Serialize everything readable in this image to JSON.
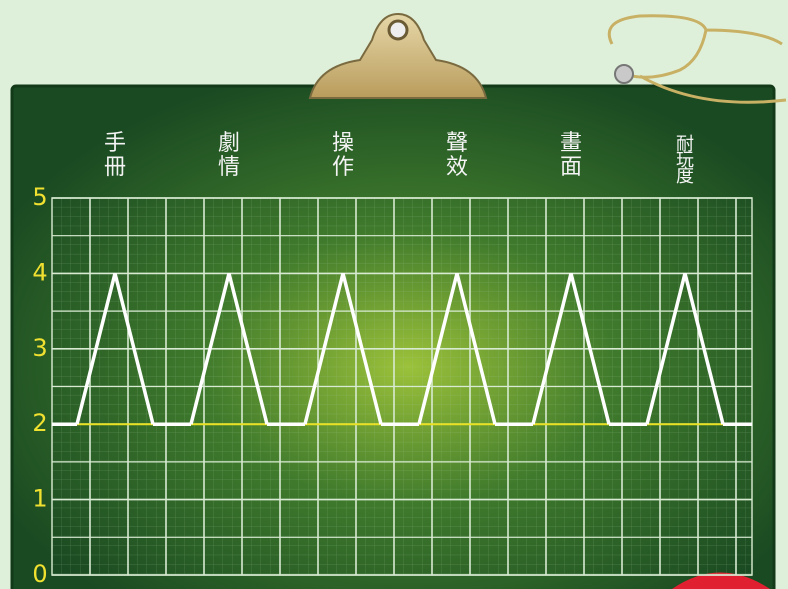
{
  "chart_data": {
    "type": "line",
    "categories": [
      "手冊",
      "劇情",
      "操作",
      "聲效",
      "畫面",
      "耐玩度"
    ],
    "values": [
      4,
      4,
      4,
      4,
      4,
      4
    ],
    "baseline": 2,
    "color": "#ffffff",
    "baseline_color": "#e8e020",
    "ylim": [
      0,
      5
    ],
    "yticks": [
      0,
      1,
      2,
      3,
      4,
      5
    ],
    "grid": true
  }
}
